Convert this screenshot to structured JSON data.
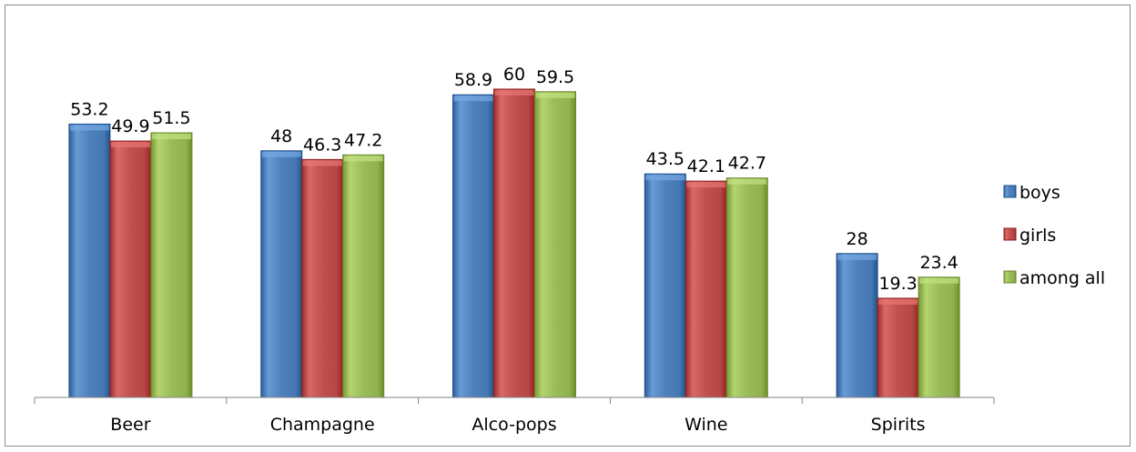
{
  "chart_data": {
    "type": "bar",
    "title": "",
    "xlabel": "",
    "ylabel": "",
    "ylim": [
      0,
      65
    ],
    "grid": false,
    "legend_position": "right",
    "categories": [
      "Beer",
      "Champagne",
      "Alco-pops",
      "Wine",
      "Spirits"
    ],
    "series": [
      {
        "name": "boys",
        "color": "#4f81bd",
        "values": [
          53.2,
          48,
          58.9,
          43.5,
          28
        ]
      },
      {
        "name": "girls",
        "color": "#c0504d",
        "values": [
          49.9,
          46.3,
          60,
          42.1,
          19.3
        ]
      },
      {
        "name": "among all",
        "color": "#9bbb59",
        "values": [
          51.5,
          47.2,
          59.5,
          42.7,
          23.4
        ]
      }
    ],
    "data_labels": [
      [
        "53.2",
        "48",
        "58.9",
        "43.5",
        "28"
      ],
      [
        "49.9",
        "46.3",
        "60",
        "42.1",
        "19.3"
      ],
      [
        "51.5",
        "47.2",
        "59.5",
        "42.7",
        "23.4"
      ]
    ]
  }
}
